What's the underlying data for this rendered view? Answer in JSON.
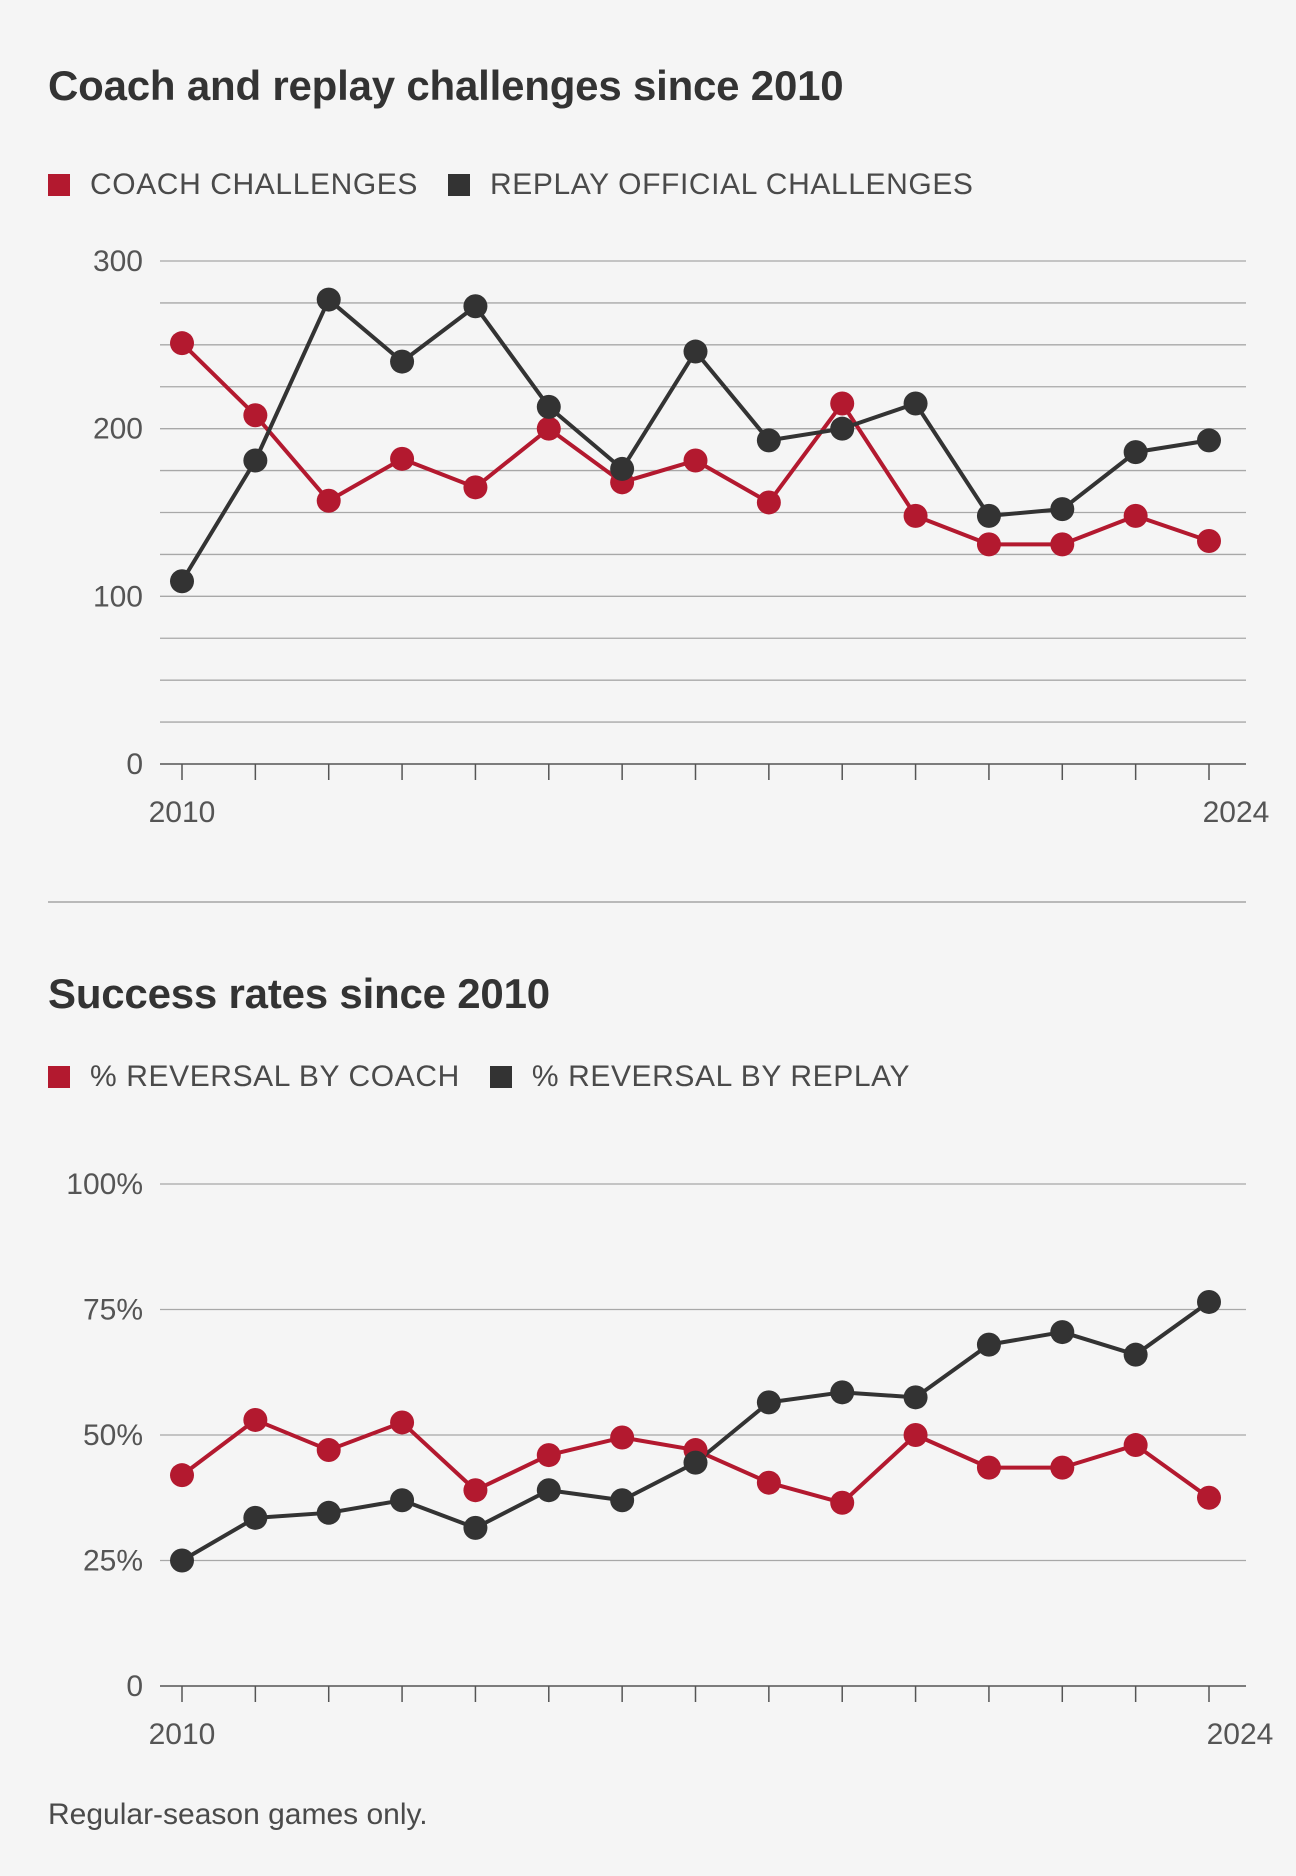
{
  "colors": {
    "coach": "#b3192f",
    "replay": "#333333",
    "grid": "#a8a8a8",
    "axis_text": "#555555"
  },
  "chart_data": [
    {
      "type": "line",
      "title": "Coach and replay challenges since 2010",
      "x": [
        2010,
        2011,
        2012,
        2013,
        2014,
        2015,
        2016,
        2017,
        2018,
        2019,
        2020,
        2021,
        2022,
        2023,
        2024
      ],
      "x_tick_labels": {
        "first": "2010",
        "last": "2024"
      },
      "y_ticks": [
        {
          "value": 0,
          "label": "0"
        },
        {
          "value": 100,
          "label": "100"
        },
        {
          "value": 200,
          "label": "200"
        },
        {
          "value": 300,
          "label": "300"
        }
      ],
      "gridline_step": 25,
      "ylim": [
        0,
        300
      ],
      "series": [
        {
          "name": "COACH CHALLENGES",
          "color_key": "coach",
          "values": [
            251,
            208,
            157,
            182,
            165,
            200,
            168,
            181,
            156,
            215,
            148,
            131,
            131,
            148,
            133
          ]
        },
        {
          "name": "REPLAY OFFICIAL CHALLENGES",
          "color_key": "replay",
          "values": [
            109,
            181,
            277,
            240,
            273,
            213,
            176,
            246,
            193,
            200,
            215,
            148,
            152,
            186,
            193
          ]
        }
      ],
      "legend": "top-left"
    },
    {
      "type": "line",
      "title": "Success rates since 2010",
      "x": [
        2010,
        2011,
        2012,
        2013,
        2014,
        2015,
        2016,
        2017,
        2018,
        2019,
        2020,
        2021,
        2022,
        2023,
        2024
      ],
      "x_tick_labels": {
        "first": "2010",
        "last": "2024"
      },
      "y_ticks": [
        {
          "value": 0,
          "label": "0"
        },
        {
          "value": 25,
          "label": "25%"
        },
        {
          "value": 50,
          "label": "50%"
        },
        {
          "value": 75,
          "label": "75%"
        },
        {
          "value": 100,
          "label": "100%"
        }
      ],
      "gridline_step": 25,
      "ylim": [
        0,
        100
      ],
      "series": [
        {
          "name": "% REVERSAL BY COACH",
          "color_key": "coach",
          "values": [
            42,
            53,
            47,
            52.5,
            39,
            46,
            49.5,
            47,
            40.5,
            36.5,
            50,
            43.5,
            43.5,
            48,
            37.5
          ]
        },
        {
          "name": "% REVERSAL BY REPLAY",
          "color_key": "replay",
          "values": [
            25,
            33.5,
            34.5,
            37,
            31.5,
            39,
            37,
            44.5,
            56.5,
            58.5,
            57.5,
            68,
            70.5,
            66,
            76.5
          ]
        }
      ],
      "legend": "top-left"
    }
  ],
  "footnote": "Regular-season games only."
}
